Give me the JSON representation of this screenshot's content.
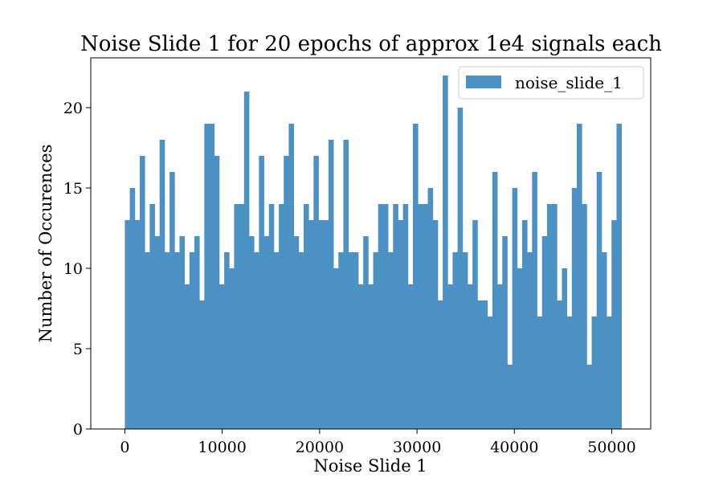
{
  "chart_data": {
    "type": "bar",
    "title": "Noise Slide 1 for 20 epochs of approx 1e4 signals each",
    "xlabel": "Noise Slide 1",
    "ylabel": "Number of Occurences",
    "xlim": [
      -3500,
      54000
    ],
    "ylim": [
      0,
      23.1
    ],
    "bin_range": [
      0,
      51000
    ],
    "xticks": [
      0,
      10000,
      20000,
      30000,
      40000,
      50000
    ],
    "yticks": [
      0,
      5,
      10,
      15,
      20
    ],
    "grid": false,
    "legend_position": "top-right",
    "series": [
      {
        "name": "noise_slide_1",
        "color": "#4c91c4",
        "values": [
          13,
          15,
          13,
          17,
          11,
          14,
          12,
          18,
          11,
          16,
          11,
          12,
          9,
          11,
          12,
          8,
          19,
          19,
          17,
          9,
          11,
          10,
          14,
          14,
          21,
          12,
          11,
          17,
          12,
          14,
          11,
          14,
          17,
          19,
          12,
          11,
          14,
          13,
          17,
          13,
          13,
          18,
          10,
          11,
          18,
          11,
          11,
          9,
          12,
          9,
          11,
          14,
          14,
          11,
          14,
          13,
          14,
          9,
          19,
          14,
          14,
          15,
          13,
          8,
          22,
          9,
          11,
          20,
          11,
          9,
          13,
          8,
          8,
          7,
          16,
          9,
          12,
          4,
          15,
          10,
          13,
          11,
          16,
          7,
          12,
          14,
          14,
          8,
          10,
          7,
          15,
          19,
          14,
          4,
          7,
          16,
          11,
          7,
          13,
          19
        ]
      }
    ]
  }
}
